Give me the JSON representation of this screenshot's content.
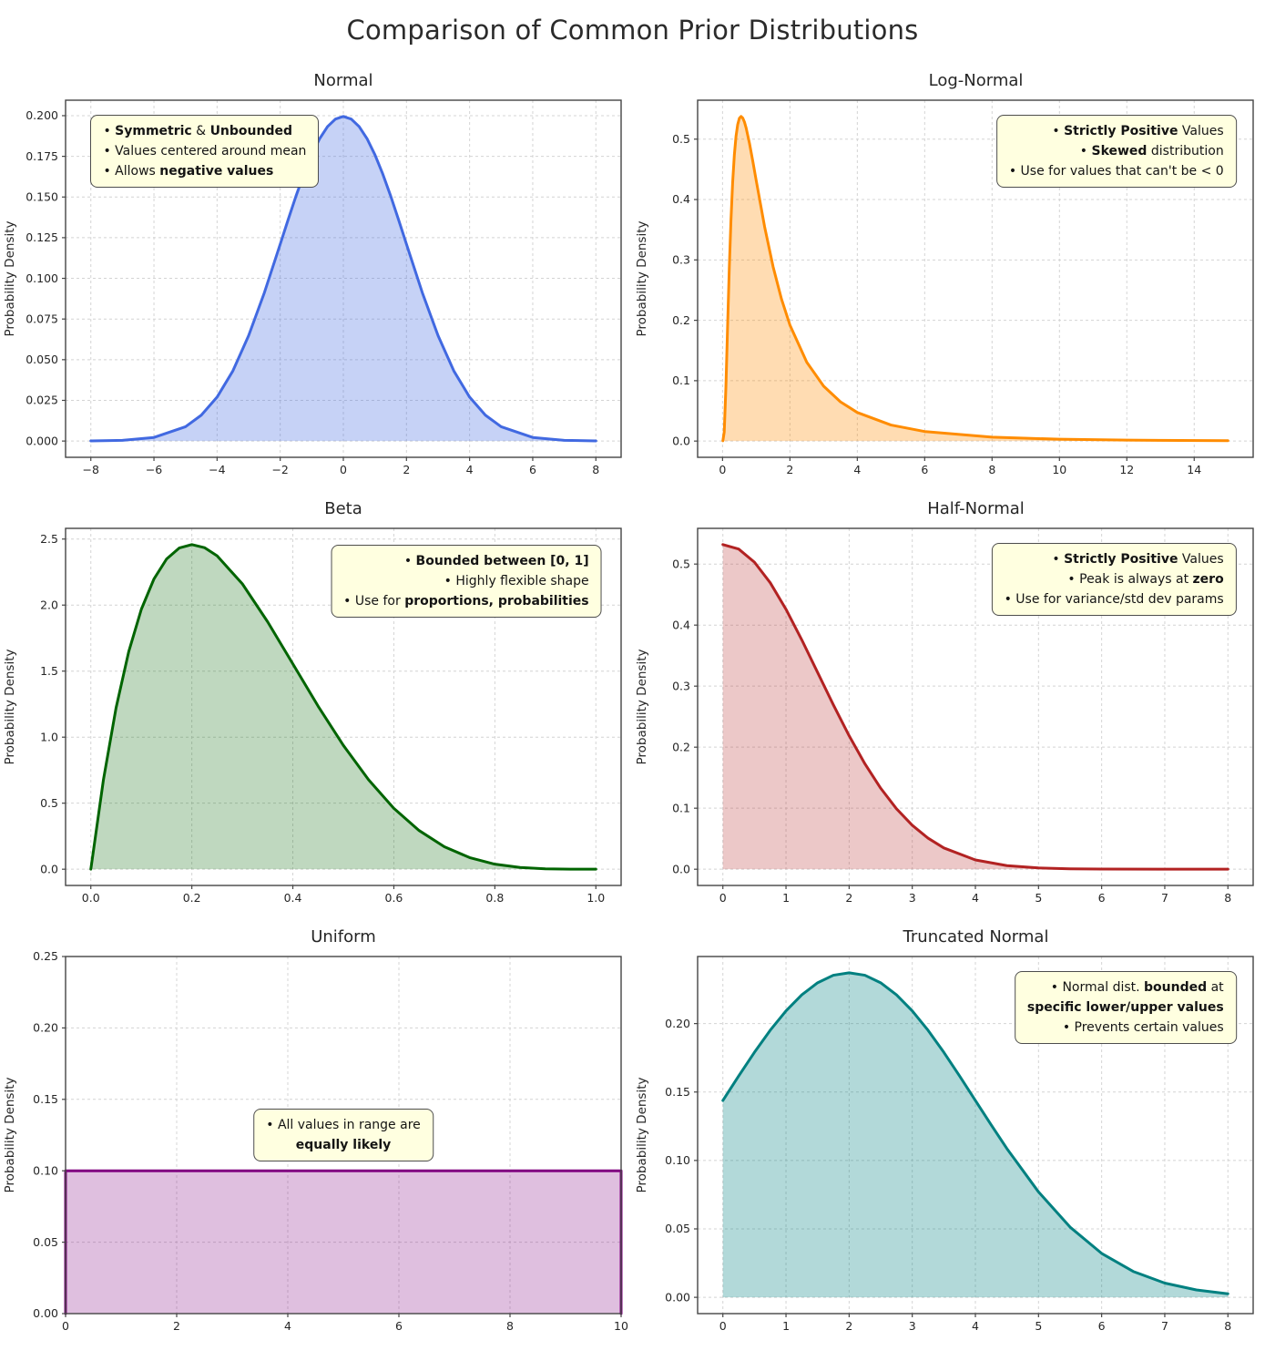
{
  "page_title": "Comparison of Common Prior Distributions",
  "ylabel": "Probability Density",
  "style": {
    "grid_color": "#d4d4d4",
    "spine_color": "#454545",
    "tick_color": "#262626",
    "annotation_bg": "#ffffe0",
    "annotation_border": "#4d4d4d",
    "background": "#ffffff"
  },
  "chart_data": [
    {
      "id": "normal",
      "type": "area",
      "title": "Normal",
      "color": "#4169e1",
      "fill_opacity": 0.3,
      "xlim": [
        -8.8,
        8.8
      ],
      "ylim": [
        -0.01,
        0.2095
      ],
      "xticks": {
        "values": [
          -8,
          -6,
          -4,
          -2,
          0,
          2,
          4,
          6,
          8
        ],
        "labels": [
          "−8",
          "−6",
          "−4",
          "−2",
          "0",
          "2",
          "4",
          "6",
          "8"
        ]
      },
      "yticks": {
        "values": [
          0,
          0.025,
          0.05,
          0.075,
          0.1,
          0.125,
          0.15,
          0.175,
          0.2
        ],
        "labels": [
          "0.000",
          "0.025",
          "0.050",
          "0.075",
          "0.100",
          "0.125",
          "0.150",
          "0.175",
          "0.200"
        ]
      },
      "smooth": true,
      "curve": {
        "x": [
          -8,
          -7,
          -6,
          -5,
          -4.5,
          -4,
          -3.5,
          -3,
          -2.5,
          -2,
          -1.75,
          -1.5,
          -1.25,
          -1,
          -0.75,
          -0.5,
          -0.25,
          0,
          0.25,
          0.5,
          0.75,
          1,
          1.25,
          1.5,
          1.75,
          2,
          2.5,
          3,
          3.5,
          4,
          4.5,
          5,
          6,
          7,
          8
        ],
        "y": [
          0.0001,
          0.0004,
          0.0022,
          0.0088,
          0.0159,
          0.027,
          0.0431,
          0.0648,
          0.0913,
          0.121,
          0.136,
          0.1506,
          0.1641,
          0.176,
          0.1859,
          0.1933,
          0.1979,
          0.1995,
          0.1979,
          0.1933,
          0.1859,
          0.176,
          0.1641,
          0.1506,
          0.136,
          0.121,
          0.0913,
          0.0648,
          0.0431,
          0.027,
          0.0159,
          0.0088,
          0.0022,
          0.0004,
          0.0001
        ]
      },
      "annotation": {
        "x": 0.045,
        "y": 0.96,
        "anchor": "top-left",
        "align": "left",
        "lines": [
          [
            [
              "• ",
              0
            ],
            [
              "Symmetric",
              1
            ],
            [
              " & ",
              0
            ],
            [
              "Unbounded",
              1
            ]
          ],
          [
            [
              "• Values centered around mean",
              0
            ]
          ],
          [
            [
              "• Allows ",
              0
            ],
            [
              "negative values",
              1
            ]
          ]
        ]
      }
    },
    {
      "id": "lognormal",
      "type": "area",
      "title": "Log-Normal",
      "color": "#ff8c00",
      "fill_opacity": 0.3,
      "xlim": [
        -0.74,
        15.75
      ],
      "ylim": [
        -0.0269,
        0.5645
      ],
      "xticks": {
        "values": [
          0,
          2,
          4,
          6,
          8,
          10,
          12,
          14
        ],
        "labels": [
          "0",
          "2",
          "4",
          "6",
          "8",
          "10",
          "12",
          "14"
        ]
      },
      "yticks": {
        "values": [
          0,
          0.1,
          0.2,
          0.3,
          0.4,
          0.5
        ],
        "labels": [
          "0.0",
          "0.1",
          "0.2",
          "0.3",
          "0.4",
          "0.5"
        ]
      },
      "smooth": true,
      "curve": {
        "x": [
          0.01,
          0.05,
          0.1,
          0.15,
          0.2,
          0.25,
          0.3,
          0.35,
          0.4,
          0.45,
          0.5,
          0.55,
          0.6,
          0.65,
          0.7,
          0.8,
          0.9,
          1,
          1.25,
          1.5,
          1.75,
          2,
          2.5,
          3,
          3.5,
          4,
          5,
          6,
          8,
          10,
          12,
          15
        ],
        "y": [
          0.0005,
          0.015,
          0.09,
          0.19,
          0.286,
          0.366,
          0.4285,
          0.4737,
          0.505,
          0.5243,
          0.5346,
          0.5376,
          0.535,
          0.5284,
          0.5186,
          0.4929,
          0.4628,
          0.4312,
          0.3546,
          0.2888,
          0.2351,
          0.1921,
          0.1306,
          0.091,
          0.0649,
          0.0473,
          0.0266,
          0.0158,
          0.0064,
          0.003,
          0.0015,
          0.0006
        ]
      },
      "annotation": {
        "x": 0.97,
        "y": 0.96,
        "anchor": "top-right",
        "align": "right",
        "lines": [
          [
            [
              "• ",
              0
            ],
            [
              "Strictly Positive",
              1
            ],
            [
              " Values",
              0
            ]
          ],
          [
            [
              "• ",
              0
            ],
            [
              "Skewed",
              1
            ],
            [
              " distribution",
              0
            ]
          ],
          [
            [
              "• Use for values that can't be < 0",
              0
            ]
          ]
        ]
      }
    },
    {
      "id": "beta",
      "type": "area",
      "title": "Beta",
      "color": "#006400",
      "fill_opacity": 0.25,
      "xlim": [
        -0.05,
        1.05
      ],
      "ylim": [
        -0.123,
        2.581
      ],
      "xticks": {
        "values": [
          0,
          0.2,
          0.4,
          0.6,
          0.8,
          1
        ],
        "labels": [
          "0.0",
          "0.2",
          "0.4",
          "0.6",
          "0.8",
          "1.0"
        ]
      },
      "yticks": {
        "values": [
          0,
          0.5,
          1,
          1.5,
          2,
          2.5
        ],
        "labels": [
          "0.0",
          "0.5",
          "1.0",
          "1.5",
          "2.0",
          "2.5"
        ]
      },
      "smooth": true,
      "curve": {
        "x": [
          0,
          0.025,
          0.05,
          0.075,
          0.1,
          0.125,
          0.15,
          0.175,
          0.2,
          0.225,
          0.25,
          0.3,
          0.35,
          0.4,
          0.45,
          0.5,
          0.55,
          0.6,
          0.65,
          0.7,
          0.75,
          0.8,
          0.85,
          0.9,
          0.95,
          1
        ],
        "y": [
          0,
          0.678,
          1.222,
          1.647,
          1.968,
          2.198,
          2.349,
          2.432,
          2.458,
          2.435,
          2.373,
          2.161,
          1.874,
          1.555,
          1.235,
          0.938,
          0.677,
          0.461,
          0.293,
          0.17,
          0.088,
          0.038,
          0.013,
          0.0027,
          0.0002,
          0
        ]
      },
      "annotation": {
        "x": 0.965,
        "y": 0.955,
        "anchor": "top-right",
        "align": "right",
        "lines": [
          [
            [
              "• ",
              0
            ],
            [
              "Bounded between [0, 1]",
              1
            ]
          ],
          [
            [
              "• Highly flexible shape",
              0
            ]
          ],
          [
            [
              "• Use for ",
              0
            ],
            [
              "proportions, probabilities",
              1
            ]
          ]
        ]
      }
    },
    {
      "id": "halfnormal",
      "type": "area",
      "title": "Half-Normal",
      "color": "#b22222",
      "fill_opacity": 0.25,
      "xlim": [
        -0.4,
        8.4
      ],
      "ylim": [
        -0.0266,
        0.5585
      ],
      "xticks": {
        "values": [
          0,
          1,
          2,
          3,
          4,
          5,
          6,
          7,
          8
        ],
        "labels": [
          "0",
          "1",
          "2",
          "3",
          "4",
          "5",
          "6",
          "7",
          "8"
        ]
      },
      "yticks": {
        "values": [
          0,
          0.1,
          0.2,
          0.3,
          0.4,
          0.5
        ],
        "labels": [
          "0.0",
          "0.1",
          "0.2",
          "0.3",
          "0.4",
          "0.5"
        ]
      },
      "smooth": true,
      "curve": {
        "x": [
          0,
          0.25,
          0.5,
          0.75,
          1,
          1.25,
          1.5,
          1.75,
          2,
          2.25,
          2.5,
          2.75,
          3,
          3.25,
          3.5,
          4,
          4.5,
          5,
          5.5,
          6,
          7,
          8
        ],
        "y": [
          0.5319,
          0.5246,
          0.5031,
          0.4694,
          0.4259,
          0.3758,
          0.3226,
          0.2694,
          0.2187,
          0.1727,
          0.1327,
          0.0991,
          0.072,
          0.0509,
          0.0349,
          0.0152,
          0.0059,
          0.0021,
          0.0007,
          0.0002,
          0.0001,
          0.0001
        ]
      },
      "annotation": {
        "x": 0.97,
        "y": 0.96,
        "anchor": "top-right",
        "align": "right",
        "lines": [
          [
            [
              "• ",
              0
            ],
            [
              "Strictly Positive",
              1
            ],
            [
              " Values",
              0
            ]
          ],
          [
            [
              "• Peak is always at ",
              0
            ],
            [
              "zero",
              1
            ]
          ],
          [
            [
              "• Use for variance/std dev params",
              0
            ]
          ]
        ]
      }
    },
    {
      "id": "uniform",
      "type": "area",
      "title": "Uniform",
      "color": "#800080",
      "fill_opacity": 0.25,
      "xlim": [
        0,
        10
      ],
      "ylim": [
        0,
        0.25
      ],
      "xticks": {
        "values": [
          0,
          2,
          4,
          6,
          8,
          10
        ],
        "labels": [
          "0",
          "2",
          "4",
          "6",
          "8",
          "10"
        ]
      },
      "yticks": {
        "values": [
          0,
          0.05,
          0.1,
          0.15,
          0.2,
          0.25
        ],
        "labels": [
          "0.00",
          "0.05",
          "0.10",
          "0.15",
          "0.20",
          "0.25"
        ]
      },
      "smooth": false,
      "curve": {
        "x": [
          0,
          0,
          10,
          10
        ],
        "y": [
          0,
          0.1,
          0.1,
          0
        ]
      },
      "annotation": {
        "x": 0.5,
        "y": 0.5,
        "anchor": "center",
        "align": "center",
        "lines": [
          [
            [
              "• All values in range are",
              0
            ]
          ],
          [
            [
              "equally likely",
              1
            ]
          ]
        ]
      }
    },
    {
      "id": "truncnormal",
      "type": "area",
      "title": "Truncated Normal",
      "color": "#008080",
      "fill_opacity": 0.3,
      "xlim": [
        -0.4,
        8.4
      ],
      "ylim": [
        -0.0119,
        0.249
      ],
      "xticks": {
        "values": [
          0,
          1,
          2,
          3,
          4,
          5,
          6,
          7,
          8
        ],
        "labels": [
          "0",
          "1",
          "2",
          "3",
          "4",
          "5",
          "6",
          "7",
          "8"
        ]
      },
      "yticks": {
        "values": [
          0,
          0.05,
          0.1,
          0.15,
          0.2
        ],
        "labels": [
          "0.00",
          "0.05",
          "0.10",
          "0.15",
          "0.20"
        ]
      },
      "smooth": true,
      "curve": {
        "x": [
          0,
          0.25,
          0.5,
          0.75,
          1,
          1.25,
          1.5,
          1.75,
          2,
          2.25,
          2.5,
          2.75,
          3,
          3.25,
          3.5,
          3.75,
          4,
          4.25,
          4.5,
          5,
          5.5,
          6,
          6.5,
          7,
          7.5,
          8
        ],
        "y": [
          0.1438,
          0.1617,
          0.179,
          0.1951,
          0.2093,
          0.221,
          0.2298,
          0.2353,
          0.2371,
          0.2353,
          0.2298,
          0.221,
          0.2093,
          0.1951,
          0.179,
          0.1617,
          0.1438,
          0.126,
          0.1086,
          0.077,
          0.0513,
          0.0321,
          0.0189,
          0.0104,
          0.0054,
          0.0026
        ]
      },
      "annotation": {
        "x": 0.97,
        "y": 0.96,
        "anchor": "top-right",
        "align": "right",
        "lines": [
          [
            [
              "• Normal dist. ",
              0
            ],
            [
              "bounded",
              1
            ],
            [
              " at",
              0
            ]
          ],
          [
            [
              "specific lower/upper values",
              1
            ]
          ],
          [
            [
              "• Prevents certain values",
              0
            ]
          ]
        ]
      }
    }
  ]
}
